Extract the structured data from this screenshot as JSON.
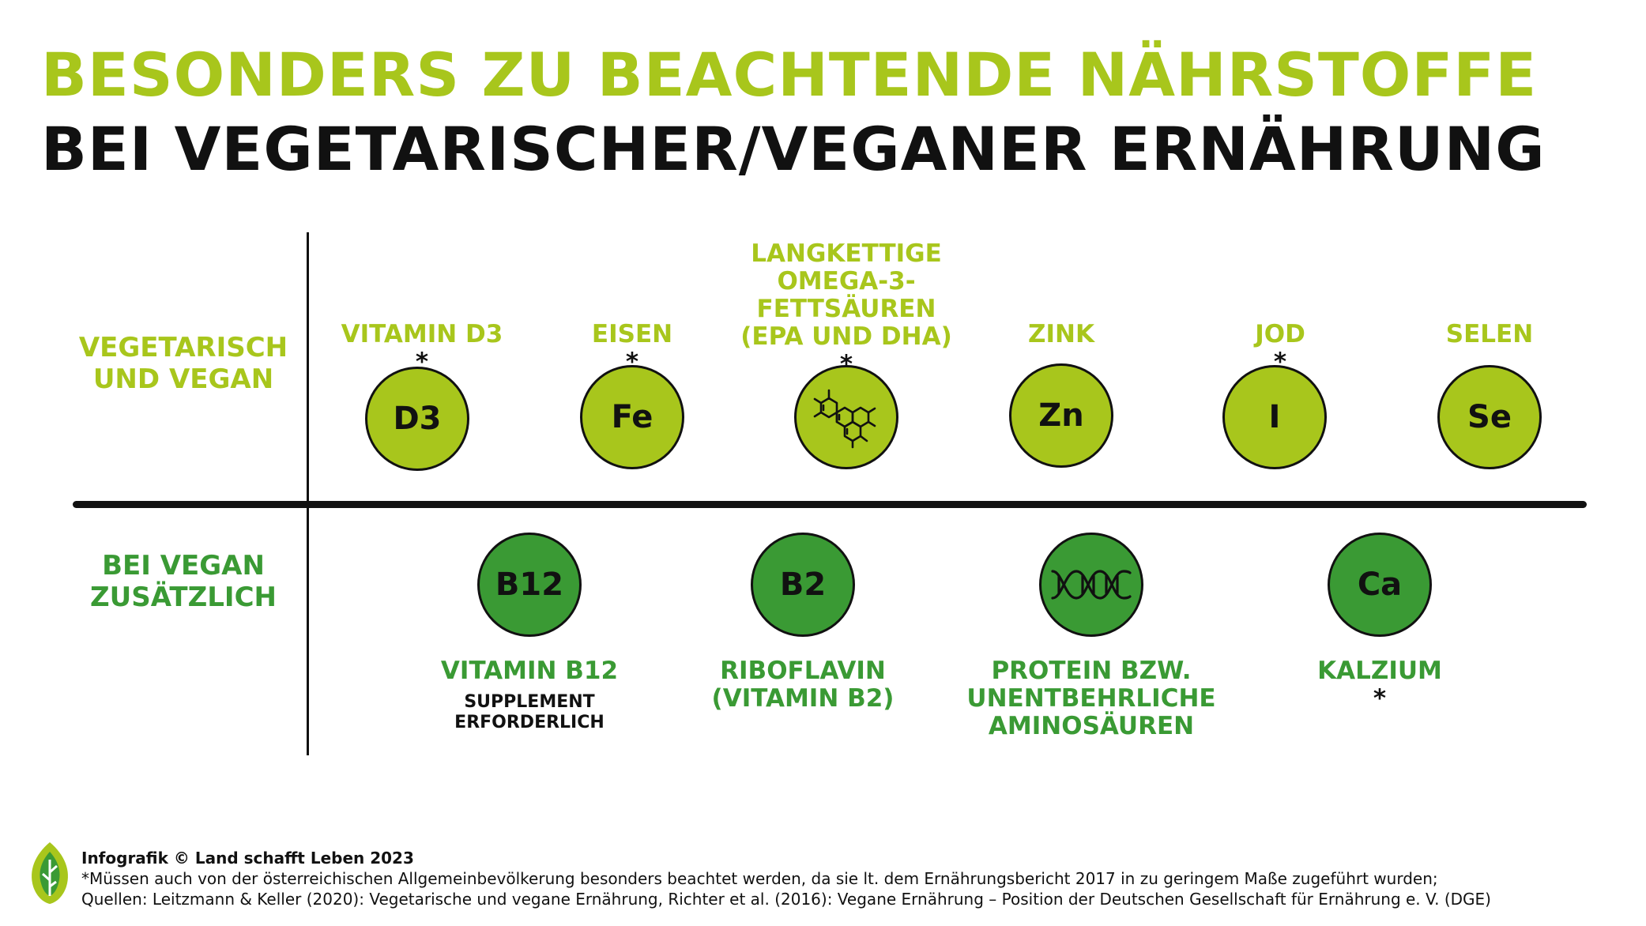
{
  "title": {
    "line1": "BESONDERS ZU BEACHTENDE NÄHRSTOFFE",
    "line2": "BEI VEGETARISCHER/VEGANER ERNÄHRUNG"
  },
  "rows": {
    "vegetarian": {
      "line1": "VEGETARISCH",
      "line2": "UND VEGAN"
    },
    "vegan": {
      "line1": "BEI VEGAN",
      "line2": "ZUSÄTZLICH"
    }
  },
  "vegetarian_nutrients": [
    {
      "symbol": "D3",
      "label": [
        "VITAMIN D3"
      ],
      "star": "*"
    },
    {
      "symbol": "Fe",
      "label": [
        "EISEN"
      ],
      "star": "*"
    },
    {
      "symbol": "",
      "icon": "molecule-icon",
      "label": [
        "LANGKETTIGE",
        "OMEGA-3-",
        "FETTSÄUREN",
        "(EPA UND DHA)"
      ],
      "star": "*"
    },
    {
      "symbol": "Zn",
      "label": [
        "ZINK"
      ],
      "star": ""
    },
    {
      "symbol": "I",
      "label": [
        "JOD"
      ],
      "star": "*"
    },
    {
      "symbol": "Se",
      "label": [
        "SELEN"
      ],
      "star": ""
    }
  ],
  "vegan_nutrients": [
    {
      "symbol": "B12",
      "label": [
        "VITAMIN B12"
      ],
      "star": "",
      "note": [
        "SUPPLEMENT",
        "ERFORDERLICH"
      ]
    },
    {
      "symbol": "B2",
      "label": [
        "RIBOFLAVIN",
        "(VITAMIN B2)"
      ],
      "star": ""
    },
    {
      "symbol": "",
      "icon": "dna-helix-icon",
      "label": [
        "PROTEIN BZW.",
        "UNENTBEHRLICHE",
        "AMINOSÄUREN"
      ],
      "star": ""
    },
    {
      "symbol": "Ca",
      "label": [
        "KALZIUM"
      ],
      "star": "*"
    }
  ],
  "footer": {
    "credit": "Infografik © Land schafft Leben 2023",
    "note": "*Müssen auch von der österreichischen Allgemeinbevölkerung besonders beachtet werden, da sie lt. dem Ernährungsbericht 2017 in zu geringem Maße zugeführt wurden;",
    "sources": "Quellen: Leitzmann & Keller (2020): Vegetarische und vegane Ernährung, Richter et al. (2016): Vegane Ernährung – Position der Deutschen Gesellschaft für Ernährung e. V. (DGE)"
  },
  "colors": {
    "light_green": "#a8c61c",
    "dark_green": "#3a9a34",
    "black": "#111111"
  }
}
